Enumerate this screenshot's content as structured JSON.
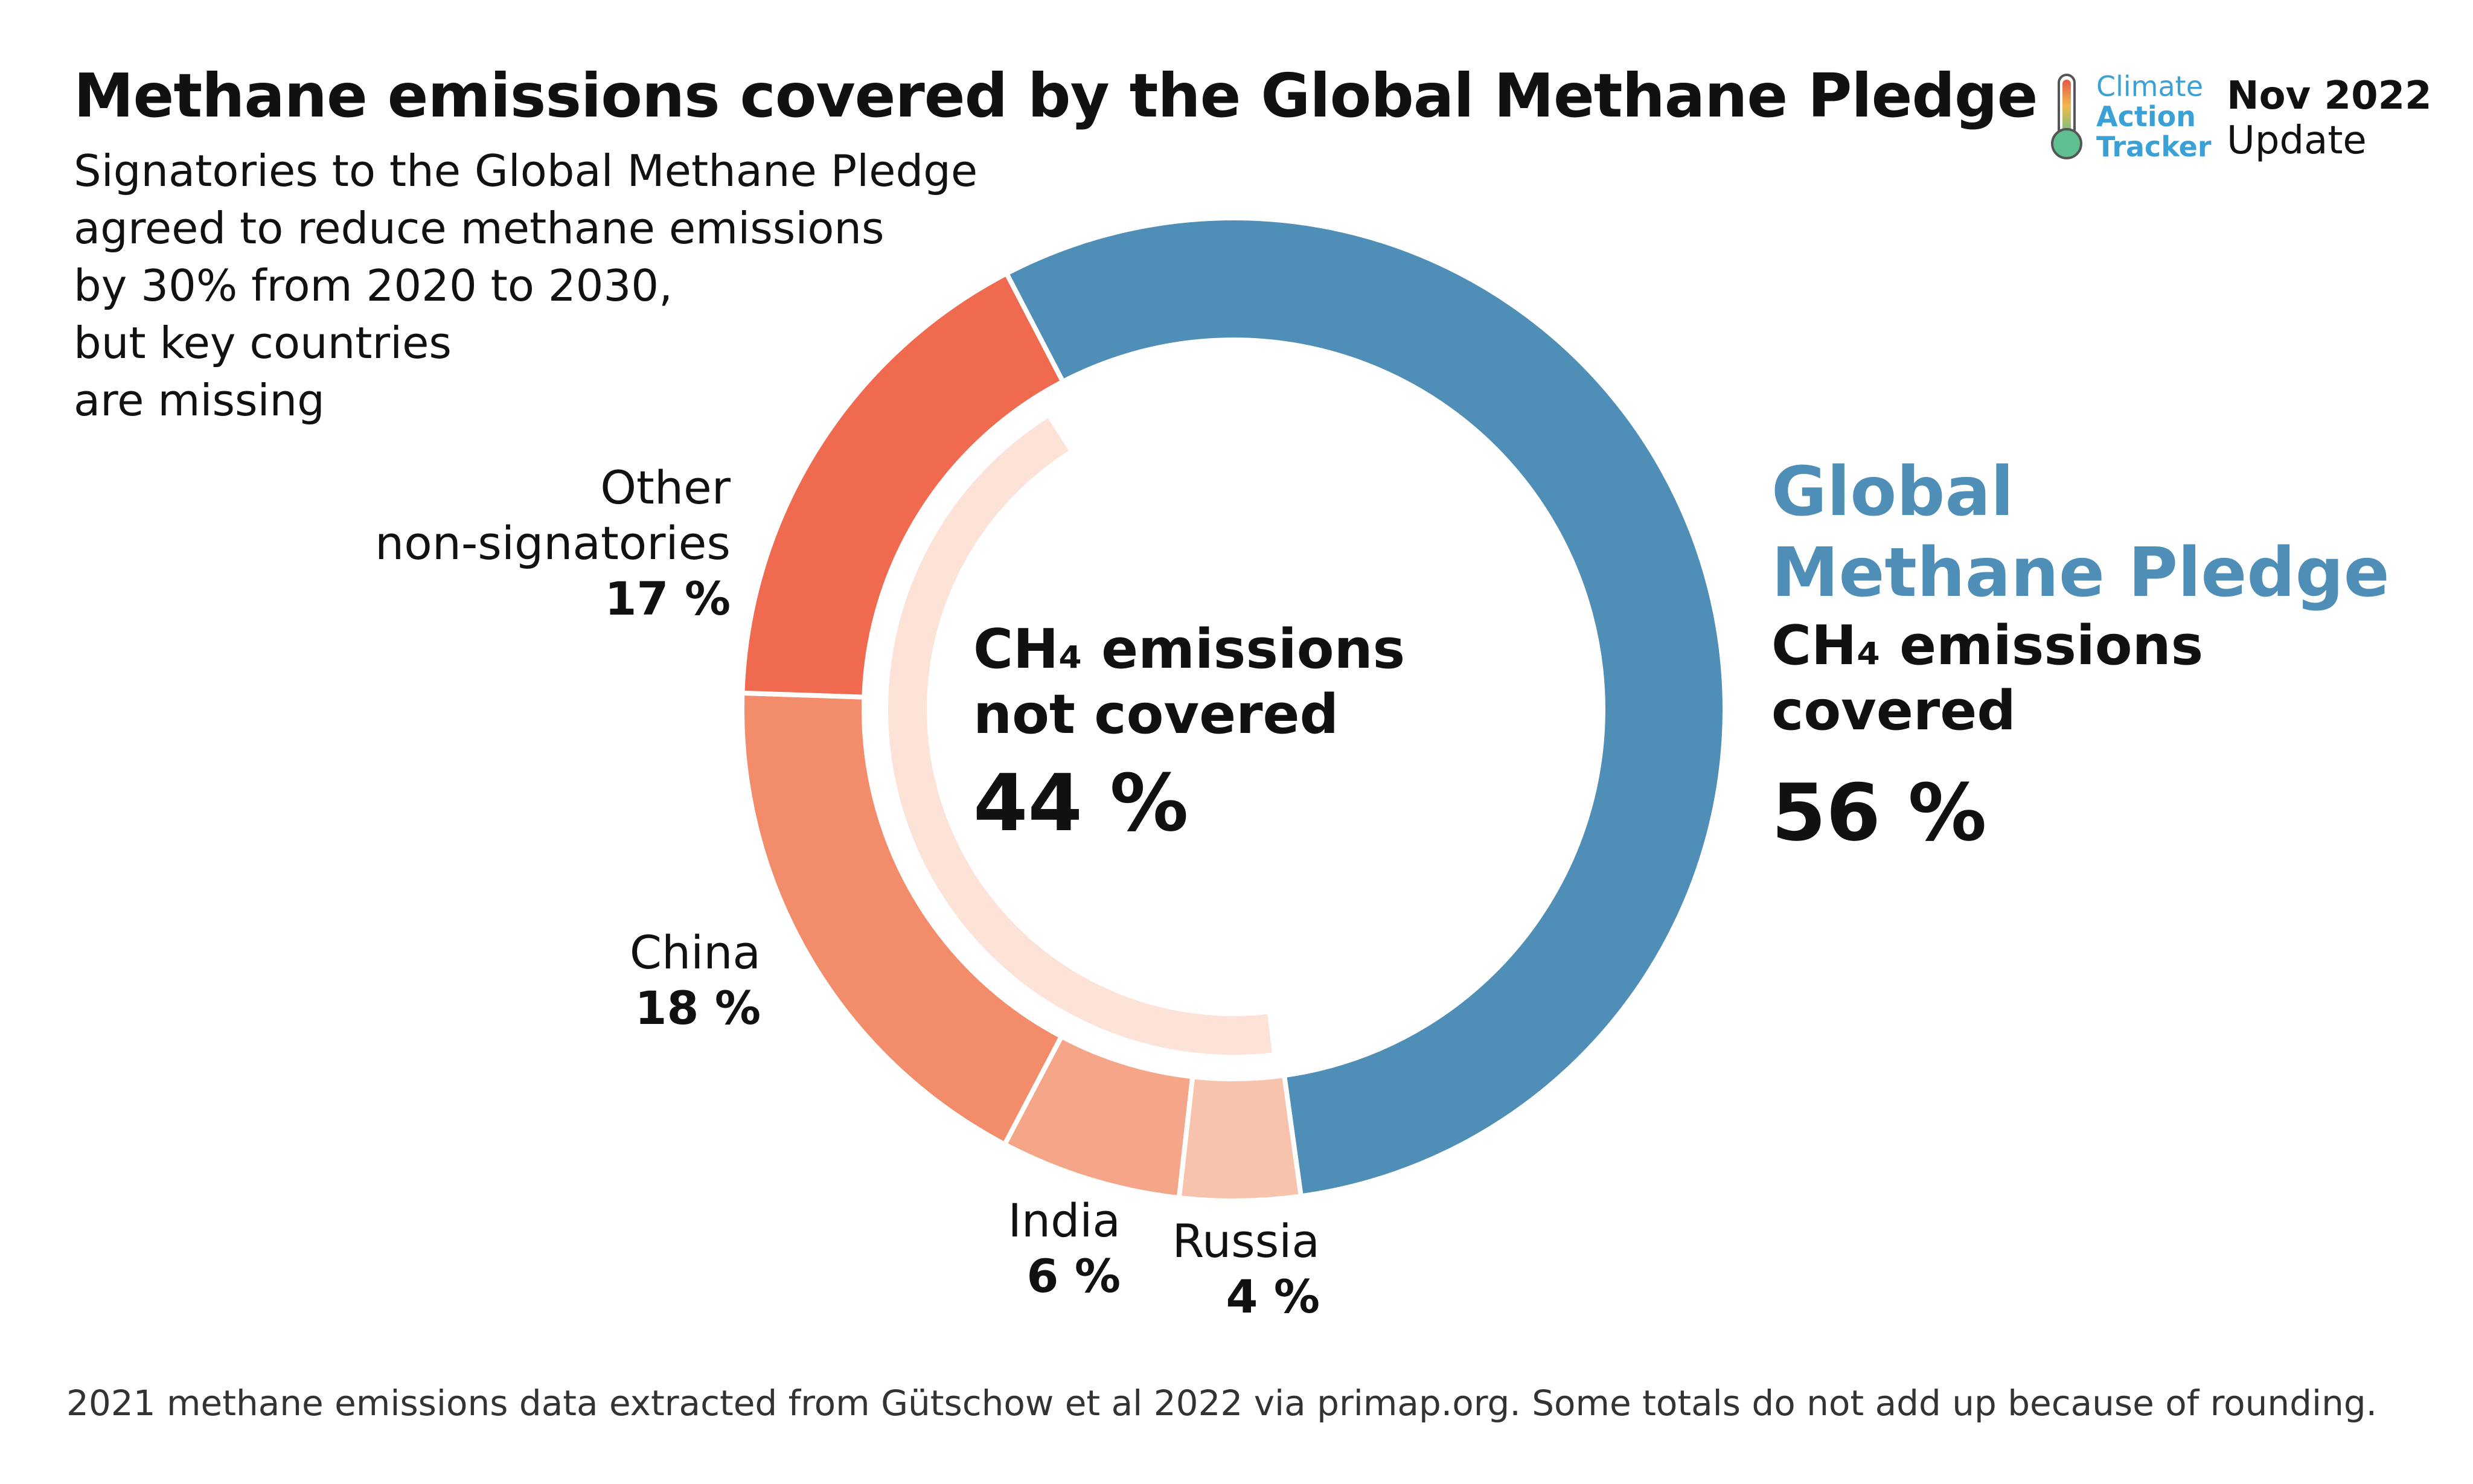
{
  "title": "Methane emissions covered by the Global Methane Pledge",
  "subtitle_lines": [
    "Signatories to the Global Methane Pledge",
    "agreed to reduce methane emissions",
    "by 30% from 2020 to 2030,",
    "but key countries",
    "are missing"
  ],
  "brand": {
    "line1": "Climate",
    "line2": "Action",
    "line3": "Tracker",
    "update_bold": "Nov 2022",
    "update_normal": "Update",
    "icon": "thermometer-icon"
  },
  "chart_data": {
    "type": "pie",
    "slices": [
      {
        "label": "Global Methane Pledge CH₄ emissions covered",
        "value": 56,
        "value_label": "56 %",
        "color": "#4f8fb7"
      },
      {
        "label": "Russia",
        "value": 4,
        "value_label": "4 %",
        "color": "#f7c3ad"
      },
      {
        "label": "India",
        "value": 6,
        "value_label": "6 %",
        "color": "#f5a689"
      },
      {
        "label": "China",
        "value": 18,
        "value_label": "18 %",
        "color": "#f28c6a"
      },
      {
        "label": "Other non-signatories",
        "value": 17,
        "value_label": "17 %",
        "color": "#ef6a4e"
      }
    ],
    "inner_arc": {
      "label": "CH₄ emissions not covered",
      "value": 44,
      "value_label": "44 %",
      "color": "#fde2d8"
    }
  },
  "labels": {
    "other_line1": "Other",
    "other_line2": "non-signatories",
    "other_pct": "17 %",
    "china": "China",
    "china_pct": "18 %",
    "india": "India",
    "india_pct": "6 %",
    "russia": "Russia",
    "russia_pct": "4 %",
    "not_covered_line1": "CH₄ emissions",
    "not_covered_line2": "not covered",
    "not_covered_pct": "44 %",
    "pledge_line1": "Global",
    "pledge_line2": "Methane Pledge",
    "covered_line1": "CH₄ emissions",
    "covered_line2": "covered",
    "covered_pct": "56 %"
  },
  "footer": "2021 methane emissions data extracted from Gütschow et al 2022 via primap.org. Some totals do not add up because of rounding."
}
